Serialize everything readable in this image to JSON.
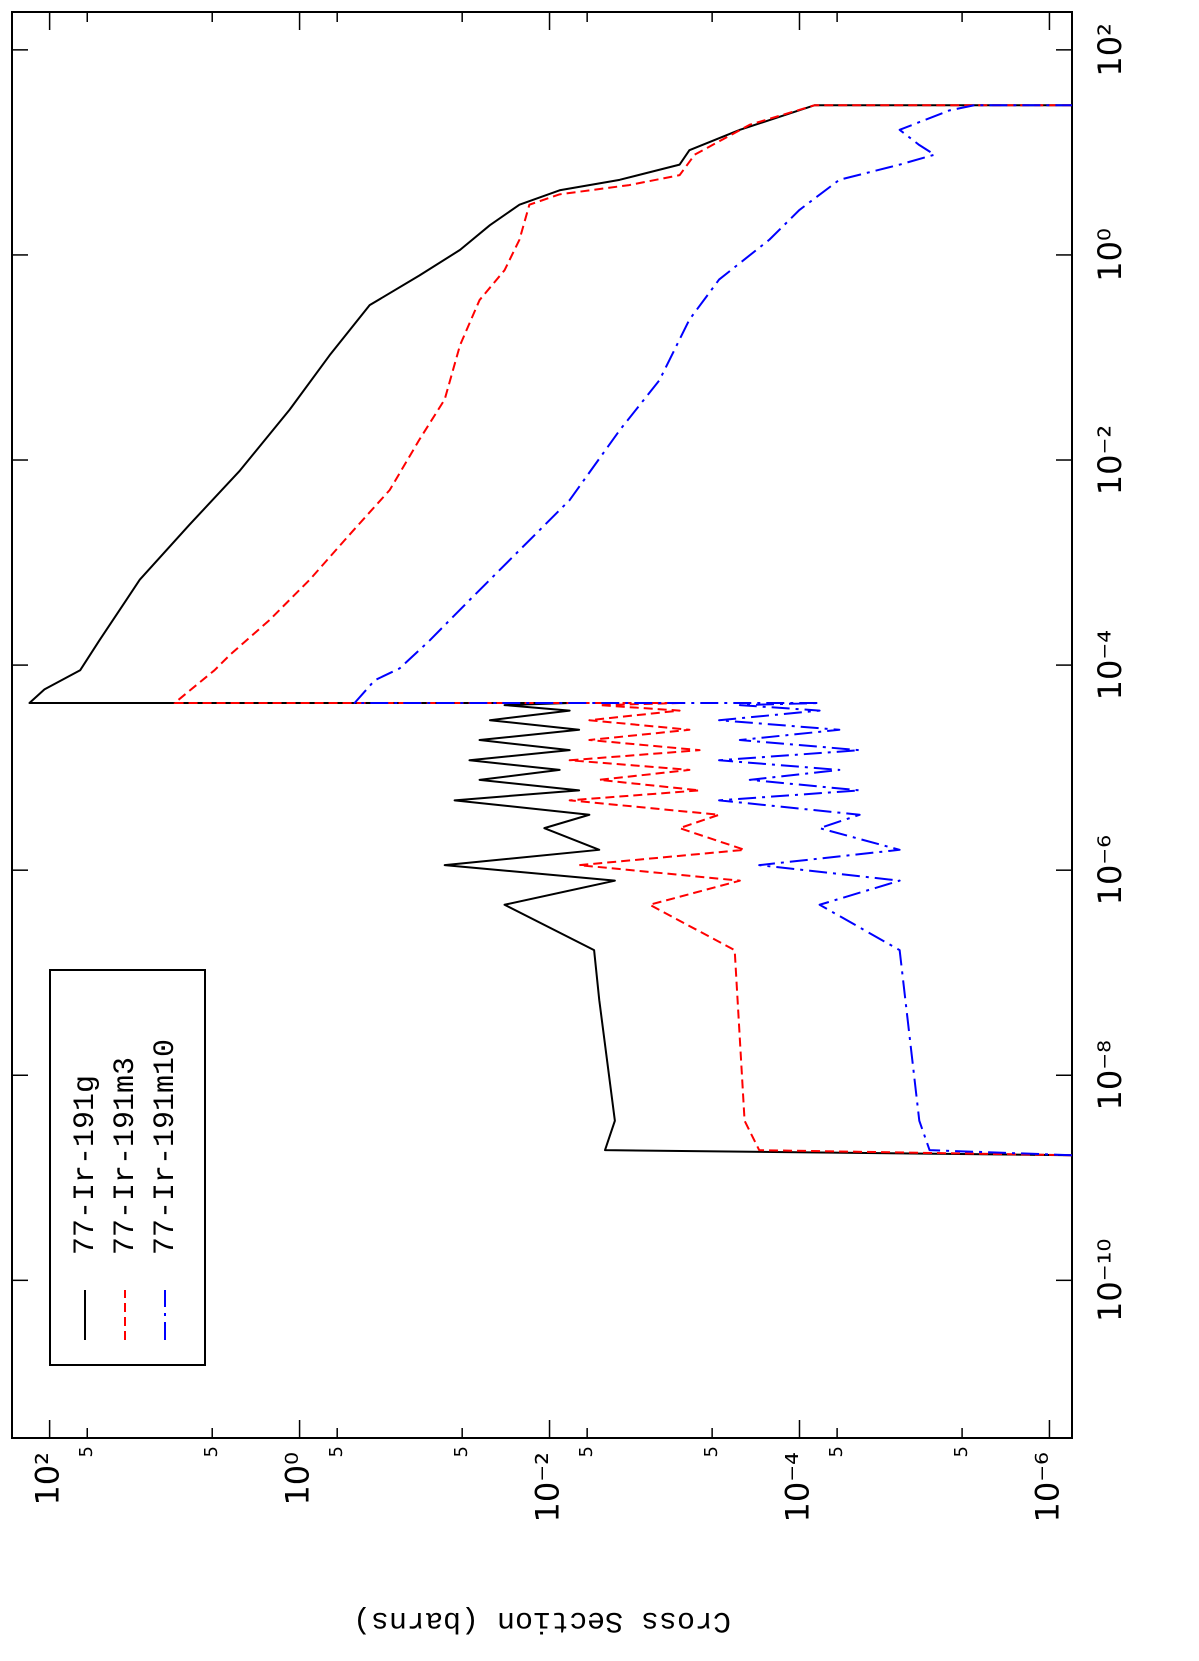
{
  "chart_data": {
    "type": "line",
    "y_label": "Cross Section (barns)",
    "log_x": true,
    "log_y": true,
    "grid": false,
    "legend": "upper left",
    "xlim": [
      2.9e-12,
      234
    ],
    "ylim": [
      6.6e-07,
      200
    ],
    "xticks": [
      {
        "value": 1e-10,
        "label": "10⁻¹⁰"
      },
      {
        "value": 1e-08,
        "label": "10⁻⁸"
      },
      {
        "value": 1e-06,
        "label": "10⁻⁶"
      },
      {
        "value": 0.0001,
        "label": "10⁻⁴"
      },
      {
        "value": 0.01,
        "label": "10⁻²"
      },
      {
        "value": 1,
        "label": "10⁰"
      },
      {
        "value": 100,
        "label": "10²"
      }
    ],
    "yticks": [
      {
        "value": 100,
        "label": "10²"
      },
      {
        "value": 50,
        "label": "5"
      },
      {
        "value": 5,
        "label": "5"
      },
      {
        "value": 1,
        "label": "10⁰"
      },
      {
        "value": 0.5,
        "label": "5"
      },
      {
        "value": 0.05,
        "label": "5"
      },
      {
        "value": 0.01,
        "label": "10⁻²"
      },
      {
        "value": 0.005,
        "label": "5"
      },
      {
        "value": 0.0005,
        "label": "5"
      },
      {
        "value": 0.0001,
        "label": "10⁻⁴"
      },
      {
        "value": 5e-05,
        "label": "5"
      },
      {
        "value": 5e-06,
        "label": "5"
      },
      {
        "value": 1e-06,
        "label": "10⁻⁶"
      }
    ],
    "series": [
      {
        "name": "77-Ir-191g",
        "color": "#000000",
        "style": "solid",
        "x": [
          1.66e-09,
          1.86e-09,
          3.6e-09,
          5.4e-08,
          1.66e-07,
          4.6e-07,
          7.9e-07,
          1.12e-06,
          1.58e-06,
          2.57e-06,
          3.47e-06,
          4.8e-06,
          6e-06,
          7.6e-06,
          9.5e-06,
          1.18e-05,
          1.48e-05,
          1.86e-05,
          2.34e-05,
          2.9e-05,
          3.6e-05,
          4.07e-05,
          4.27e-05,
          4.27e-05,
          5.8e-05,
          8.9e-05,
          0.000174,
          0.00068,
          0.00234,
          0.0079,
          0.031,
          0.105,
          0.324,
          0.63,
          1.12,
          1.95,
          3.09,
          4.27,
          5.4,
          7.6,
          10.5,
          16.6,
          28.8,
          28.8
        ],
        "values": [
          6.6e-07,
          0.0036,
          0.003,
          0.004,
          0.0044,
          0.0229,
          0.003,
          0.069,
          0.004,
          0.011,
          0.0048,
          0.0575,
          0.0058,
          0.0363,
          0.0083,
          0.0437,
          0.0069,
          0.0363,
          0.0058,
          0.03,
          0.0069,
          0.0229,
          0.0069,
          145,
          110,
          57,
          40,
          19,
          7.6,
          3.0,
          1.2,
          0.575,
          0.275,
          0.11,
          0.052,
          0.03,
          0.0174,
          0.0083,
          0.00275,
          0.00091,
          0.00076,
          0.0003,
          7.6e-05,
          6.6e-07
        ]
      },
      {
        "name": "77-Ir-191m3",
        "color": "#ff0000",
        "style": "dashed",
        "x": [
          1.66e-09,
          1.86e-09,
          3.6e-09,
          1.66e-07,
          4.6e-07,
          7.9e-07,
          1.12e-06,
          1.58e-06,
          2.57e-06,
          3.47e-06,
          4.8e-06,
          6e-06,
          7.6e-06,
          9.5e-06,
          1.18e-05,
          1.48e-05,
          1.86e-05,
          2.34e-05,
          2.9e-05,
          3.6e-05,
          4.07e-05,
          4.27e-05,
          4.27e-05,
          8.9e-05,
          0.000126,
          0.000275,
          0.00068,
          0.00186,
          0.0051,
          0.0158,
          0.039,
          0.132,
          0.363,
          0.71,
          1.41,
          3.09,
          3.9,
          4.8,
          6.0,
          9.5,
          18.6,
          28.8,
          28.8
        ],
        "values": [
          6.6e-07,
          0.00021,
          0.000275,
          0.00033,
          0.00158,
          0.0003,
          0.0058,
          0.000275,
          0.00091,
          0.00044,
          0.0069,
          0.00063,
          0.004,
          0.00076,
          0.0069,
          0.00063,
          0.0048,
          0.00076,
          0.0048,
          0.00091,
          0.004,
          0.00091,
          10,
          4.8,
          3.6,
          1.74,
          0.83,
          0.4,
          0.19,
          0.11,
          0.069,
          0.052,
          0.0363,
          0.0229,
          0.0174,
          0.0145,
          0.0083,
          0.0023,
          0.00091,
          0.00069,
          0.00025,
          7.6e-05,
          6.6e-07
        ]
      },
      {
        "name": "77-Ir-191m10",
        "color": "#0000ff",
        "style": "dashdot",
        "x": [
          1.66e-09,
          1.86e-09,
          3.6e-09,
          1.66e-07,
          4.6e-07,
          7.9e-07,
          1.12e-06,
          1.58e-06,
          2.57e-06,
          3.47e-06,
          4.8e-06,
          6e-06,
          7.6e-06,
          9.5e-06,
          1.18e-05,
          1.48e-05,
          1.86e-05,
          2.34e-05,
          2.9e-05,
          3.6e-05,
          4.07e-05,
          4.27e-05,
          4.27e-05,
          7.1e-05,
          9.3e-05,
          0.000174,
          0.00043,
          0.00132,
          0.00407,
          0.0195,
          0.06,
          0.234,
          0.575,
          1.41,
          2.75,
          5.4,
          7.6,
          9.5,
          11.8,
          16.6,
          25.7,
          28.8,
          28.8
        ],
        "values": [
          6.6e-07,
          9.1e-06,
          1.1e-05,
          1.58e-05,
          6.9e-05,
          1.58e-05,
          0.00021,
          1.58e-05,
          6.9e-05,
          3.3e-05,
          0.00044,
          3.3e-05,
          0.00025,
          4.8e-05,
          0.00044,
          3.3e-05,
          0.0003,
          4.8e-05,
          0.00044,
          6.9e-05,
          0.0003,
          6.9e-05,
          0.363,
          0.251,
          0.158,
          0.091,
          0.0437,
          0.0174,
          0.0069,
          0.00275,
          0.00132,
          0.00076,
          0.00044,
          0.000174,
          0.0001,
          4.8e-05,
          1.58e-05,
          8.3e-06,
          1.1e-05,
          1.58e-05,
          6.3e-06,
          4e-06,
          6.6e-07
        ]
      }
    ]
  }
}
